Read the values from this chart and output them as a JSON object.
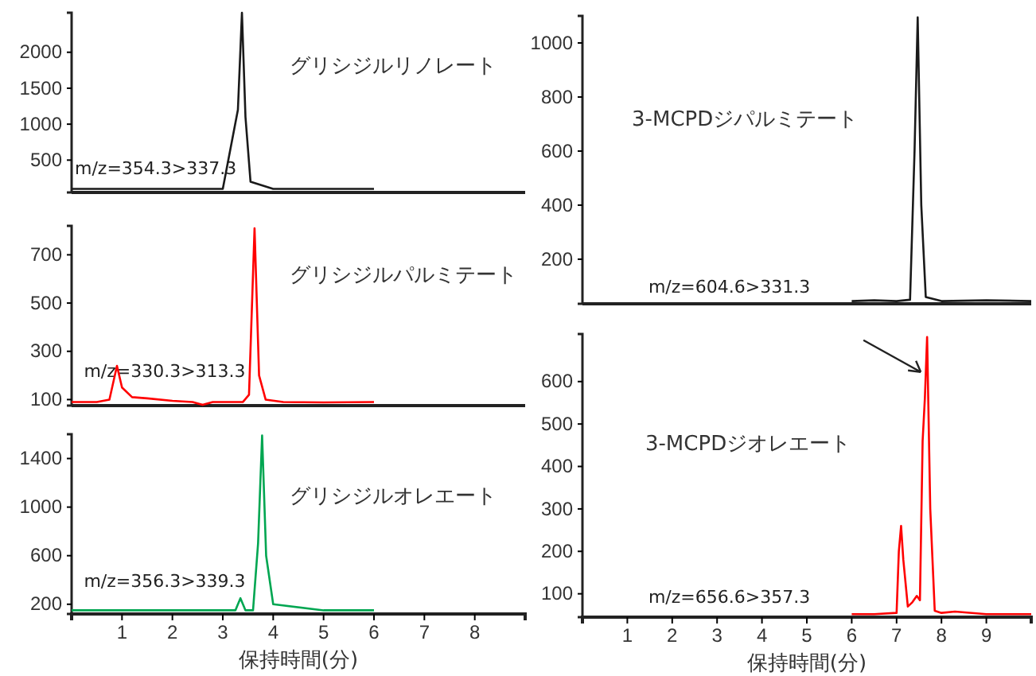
{
  "chart_data": [
    {
      "type": "line",
      "title": "グリシジルリノレート",
      "annotations": [
        "m/z=354.3>337.3"
      ],
      "xlim": [
        0,
        9
      ],
      "xticks": [
        1,
        2,
        3,
        4,
        5,
        6,
        7,
        8
      ],
      "ylim": [
        50,
        2550
      ],
      "yticks": [
        500,
        1000,
        1500,
        2000
      ],
      "tick_labels": "y",
      "grid": false,
      "marker": "none",
      "series": [
        {
          "color": "#1a1a1a",
          "x": [
            0,
            1,
            2,
            3,
            3.3,
            3.38,
            3.45,
            3.55,
            4,
            5,
            6
          ],
          "values": [
            100,
            100,
            100,
            100,
            1200,
            2550,
            1100,
            200,
            100,
            100,
            100
          ]
        }
      ]
    },
    {
      "type": "line",
      "title": "グリシジルパルミテート",
      "annotations": [
        "m/z=330.3>313.3"
      ],
      "xlim": [
        0,
        9
      ],
      "xticks": [
        1,
        2,
        3,
        4,
        5,
        6,
        7,
        8
      ],
      "ylim": [
        75,
        820
      ],
      "yticks": [
        100,
        300,
        500,
        700
      ],
      "tick_labels": "y",
      "grid": false,
      "marker": "none",
      "series": [
        {
          "color": "#ff0000",
          "x": [
            0,
            0.5,
            0.75,
            0.9,
            1.0,
            1.2,
            1.5,
            2,
            2.4,
            2.6,
            2.8,
            3,
            3.4,
            3.52,
            3.63,
            3.72,
            3.85,
            4.2,
            5,
            6
          ],
          "values": [
            90,
            90,
            100,
            240,
            150,
            110,
            105,
            95,
            90,
            78,
            90,
            90,
            90,
            120,
            810,
            200,
            100,
            90,
            88,
            90
          ]
        }
      ]
    },
    {
      "type": "line",
      "title": "グリシジルオレエート",
      "xlabel": "保持時間(分)",
      "annotations": [
        "m/z=356.3>339.3"
      ],
      "xlim": [
        0,
        9
      ],
      "xticks": [
        1,
        2,
        3,
        4,
        5,
        6,
        7,
        8
      ],
      "ylim": [
        120,
        1600
      ],
      "yticks": [
        200,
        600,
        1000,
        1400
      ],
      "grid": false,
      "marker": "none",
      "series": [
        {
          "color": "#00a651",
          "x": [
            0,
            1,
            2,
            3,
            3.25,
            3.35,
            3.45,
            3.6,
            3.7,
            3.78,
            3.86,
            4,
            5,
            6
          ],
          "values": [
            150,
            150,
            150,
            150,
            150,
            250,
            150,
            150,
            700,
            1590,
            600,
            200,
            150,
            150
          ]
        }
      ]
    },
    {
      "type": "line",
      "title": "3-MCPDジパルミテート",
      "annotations": [
        "m/z=604.6>331.3"
      ],
      "xlim": [
        0,
        10
      ],
      "xticks": [
        1,
        2,
        3,
        4,
        5,
        6,
        7,
        8,
        9
      ],
      "ylim": [
        35,
        1100
      ],
      "yticks": [
        200,
        400,
        600,
        800,
        1000
      ],
      "tick_labels": "y",
      "grid": false,
      "marker": "none",
      "series": [
        {
          "color": "#1a1a1a",
          "x": [
            6,
            6.5,
            7,
            7.3,
            7.4,
            7.47,
            7.55,
            7.65,
            8,
            9,
            10
          ],
          "values": [
            45,
            48,
            45,
            50,
            600,
            1095,
            400,
            60,
            45,
            48,
            45
          ]
        }
      ]
    },
    {
      "type": "line",
      "title": "3-MCPDジオレエート",
      "xlabel": "保持時間(分)",
      "annotations": [
        "m/z=656.6>357.3"
      ],
      "xlim": [
        0,
        10
      ],
      "xticks": [
        1,
        2,
        3,
        4,
        5,
        6,
        7,
        8,
        9
      ],
      "ylim": [
        45,
        712
      ],
      "yticks": [
        100,
        200,
        300,
        400,
        500,
        600
      ],
      "grid": false,
      "marker": "none",
      "series": [
        {
          "color": "#ff0000",
          "x": [
            6,
            6.5,
            7,
            7.05,
            7.1,
            7.15,
            7.25,
            7.35,
            7.45,
            7.52,
            7.58,
            7.63,
            7.68,
            7.75,
            7.85,
            8,
            8.3,
            9,
            10
          ],
          "values": [
            52,
            52,
            55,
            200,
            260,
            180,
            70,
            80,
            95,
            85,
            460,
            560,
            705,
            300,
            60,
            55,
            58,
            52,
            52
          ]
        }
      ]
    }
  ]
}
